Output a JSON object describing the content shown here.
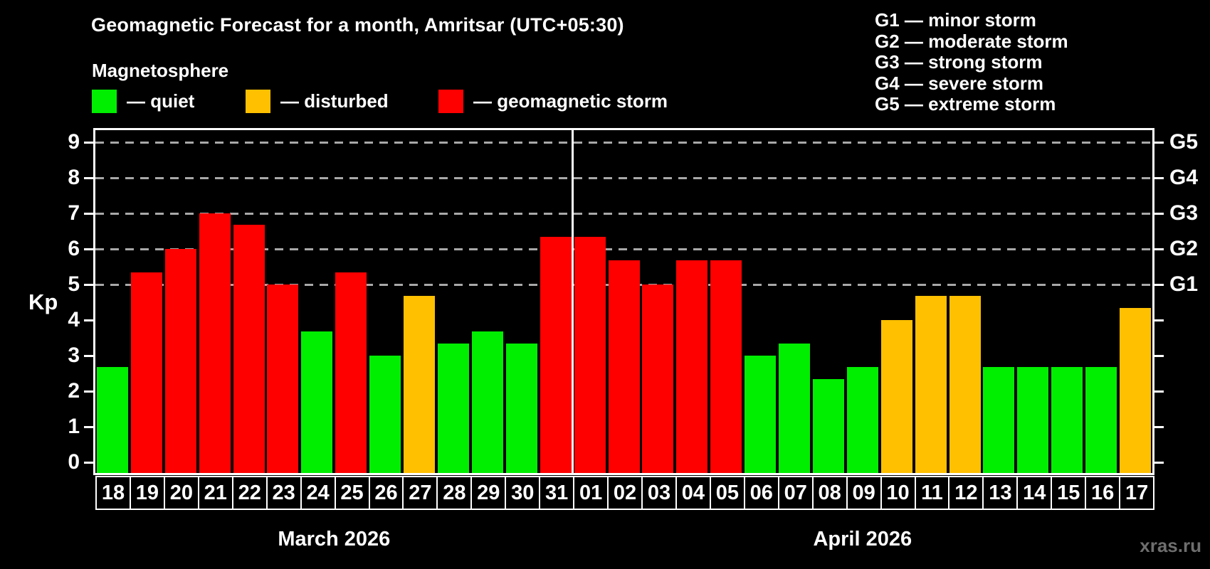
{
  "header": {
    "title": "Geomagnetic Forecast for a month, Amritsar (UTC+05:30)",
    "subtitle": "Magnetosphere",
    "legend": [
      {
        "key": "quiet",
        "label": "— quiet",
        "color": "#00ee00"
      },
      {
        "key": "disturbed",
        "label": "— disturbed",
        "color": "#ffc000"
      },
      {
        "key": "storm",
        "label": "— geomagnetic storm",
        "color": "#ff0000"
      }
    ],
    "g_scale_legend": [
      {
        "label": "G1 — minor storm"
      },
      {
        "label": "G2 — moderate storm"
      },
      {
        "label": "G3 — strong storm"
      },
      {
        "label": "G4 — severe storm"
      },
      {
        "label": "G5 — extreme storm"
      }
    ]
  },
  "chart_data": {
    "type": "bar",
    "title": "Geomagnetic Forecast for a month, Amritsar (UTC+05:30)",
    "ylabel": "Kp",
    "ylim": [
      0,
      9
    ],
    "yticks": [
      0,
      1,
      2,
      3,
      4,
      5,
      6,
      7,
      8,
      9
    ],
    "gridlines_at": [
      5,
      6,
      7,
      8,
      9
    ],
    "grid": true,
    "right_axis_labels": [
      {
        "label": "G1",
        "kp": 5
      },
      {
        "label": "G2",
        "kp": 6
      },
      {
        "label": "G3",
        "kp": 7
      },
      {
        "label": "G4",
        "kp": 8
      },
      {
        "label": "G5",
        "kp": 9
      }
    ],
    "status_colors": {
      "quiet": "#00ee00",
      "disturbed": "#ffc000",
      "storm": "#ff0000"
    },
    "months": [
      {
        "label": "March 2026",
        "days": 14
      },
      {
        "label": "April 2026",
        "days": 17
      }
    ],
    "days": [
      {
        "date": "18",
        "month": "March 2026",
        "kp": 2.67,
        "status": "quiet"
      },
      {
        "date": "19",
        "month": "March 2026",
        "kp": 5.33,
        "status": "storm"
      },
      {
        "date": "20",
        "month": "March 2026",
        "kp": 6.0,
        "status": "storm"
      },
      {
        "date": "21",
        "month": "March 2026",
        "kp": 7.0,
        "status": "storm"
      },
      {
        "date": "22",
        "month": "March 2026",
        "kp": 6.67,
        "status": "storm"
      },
      {
        "date": "23",
        "month": "March 2026",
        "kp": 5.0,
        "status": "storm"
      },
      {
        "date": "24",
        "month": "March 2026",
        "kp": 3.67,
        "status": "quiet"
      },
      {
        "date": "25",
        "month": "March 2026",
        "kp": 5.33,
        "status": "storm"
      },
      {
        "date": "26",
        "month": "March 2026",
        "kp": 3.0,
        "status": "quiet"
      },
      {
        "date": "27",
        "month": "March 2026",
        "kp": 4.67,
        "status": "disturbed"
      },
      {
        "date": "28",
        "month": "March 2026",
        "kp": 3.33,
        "status": "quiet"
      },
      {
        "date": "29",
        "month": "March 2026",
        "kp": 3.67,
        "status": "quiet"
      },
      {
        "date": "30",
        "month": "March 2026",
        "kp": 3.33,
        "status": "quiet"
      },
      {
        "date": "31",
        "month": "March 2026",
        "kp": 6.33,
        "status": "storm"
      },
      {
        "date": "01",
        "month": "April 2026",
        "kp": 6.33,
        "status": "storm"
      },
      {
        "date": "02",
        "month": "April 2026",
        "kp": 5.67,
        "status": "storm"
      },
      {
        "date": "03",
        "month": "April 2026",
        "kp": 5.0,
        "status": "storm"
      },
      {
        "date": "04",
        "month": "April 2026",
        "kp": 5.67,
        "status": "storm"
      },
      {
        "date": "05",
        "month": "April 2026",
        "kp": 5.67,
        "status": "storm"
      },
      {
        "date": "06",
        "month": "April 2026",
        "kp": 3.0,
        "status": "quiet"
      },
      {
        "date": "07",
        "month": "April 2026",
        "kp": 3.33,
        "status": "quiet"
      },
      {
        "date": "08",
        "month": "April 2026",
        "kp": 2.33,
        "status": "quiet"
      },
      {
        "date": "09",
        "month": "April 2026",
        "kp": 2.67,
        "status": "quiet"
      },
      {
        "date": "10",
        "month": "April 2026",
        "kp": 4.0,
        "status": "disturbed"
      },
      {
        "date": "11",
        "month": "April 2026",
        "kp": 4.67,
        "status": "disturbed"
      },
      {
        "date": "12",
        "month": "April 2026",
        "kp": 4.67,
        "status": "disturbed"
      },
      {
        "date": "13",
        "month": "April 2026",
        "kp": 2.67,
        "status": "quiet"
      },
      {
        "date": "14",
        "month": "April 2026",
        "kp": 2.67,
        "status": "quiet"
      },
      {
        "date": "15",
        "month": "April 2026",
        "kp": 2.67,
        "status": "quiet"
      },
      {
        "date": "16",
        "month": "April 2026",
        "kp": 2.67,
        "status": "quiet"
      },
      {
        "date": "17",
        "month": "April 2026",
        "kp": 4.33,
        "status": "disturbed"
      }
    ]
  },
  "footer": {
    "watermark": "xras.ru"
  }
}
